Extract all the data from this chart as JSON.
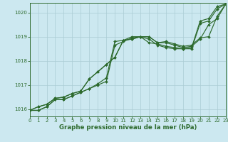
{
  "title": "Graphe pression niveau de la mer (hPa)",
  "bg_color": "#cce8f0",
  "line_color": "#2d6a2d",
  "grid_color": "#aaccd4",
  "xlim": [
    0,
    23
  ],
  "ylim": [
    1015.7,
    1020.4
  ],
  "yticks": [
    1016,
    1017,
    1018,
    1019,
    1020
  ],
  "xticks": [
    0,
    1,
    2,
    3,
    4,
    5,
    6,
    7,
    8,
    9,
    10,
    11,
    12,
    13,
    14,
    15,
    16,
    17,
    18,
    19,
    20,
    21,
    22,
    23
  ],
  "lines": [
    [
      1015.95,
      1015.95,
      1016.1,
      1016.4,
      1016.4,
      1016.55,
      1016.7,
      1016.85,
      1017.05,
      1017.3,
      1018.8,
      1018.85,
      1019.0,
      1019.0,
      1018.75,
      1018.7,
      1018.6,
      1018.55,
      1018.5,
      1018.55,
      1019.65,
      1019.75,
      1020.25,
      1020.35
    ],
    [
      1015.95,
      1016.1,
      1016.2,
      1016.45,
      1016.5,
      1016.65,
      1016.75,
      1017.25,
      1017.55,
      1017.85,
      1018.15,
      1018.85,
      1018.9,
      1019.0,
      1019.0,
      1018.75,
      1018.8,
      1018.7,
      1018.6,
      1018.65,
      1018.95,
      1019.0,
      1019.85,
      1020.35
    ],
    [
      1015.95,
      1016.1,
      1016.2,
      1016.45,
      1016.5,
      1016.65,
      1016.75,
      1017.25,
      1017.55,
      1017.85,
      1018.15,
      1018.85,
      1018.9,
      1019.0,
      1019.0,
      1018.75,
      1018.75,
      1018.65,
      1018.55,
      1018.6,
      1018.9,
      1019.5,
      1019.75,
      1020.35
    ],
    [
      1015.95,
      1015.95,
      1016.1,
      1016.4,
      1016.4,
      1016.55,
      1016.7,
      1016.85,
      1017.0,
      1017.15,
      1018.65,
      1018.8,
      1018.95,
      1019.0,
      1018.9,
      1018.65,
      1018.55,
      1018.5,
      1018.5,
      1018.5,
      1019.55,
      1019.65,
      1020.15,
      1020.35
    ]
  ],
  "marker": "D",
  "marker_size": 2.0,
  "linewidth": 0.85,
  "tick_fontsize": 5.0,
  "xlabel_fontsize": 6.2,
  "title_fontweight": "bold"
}
